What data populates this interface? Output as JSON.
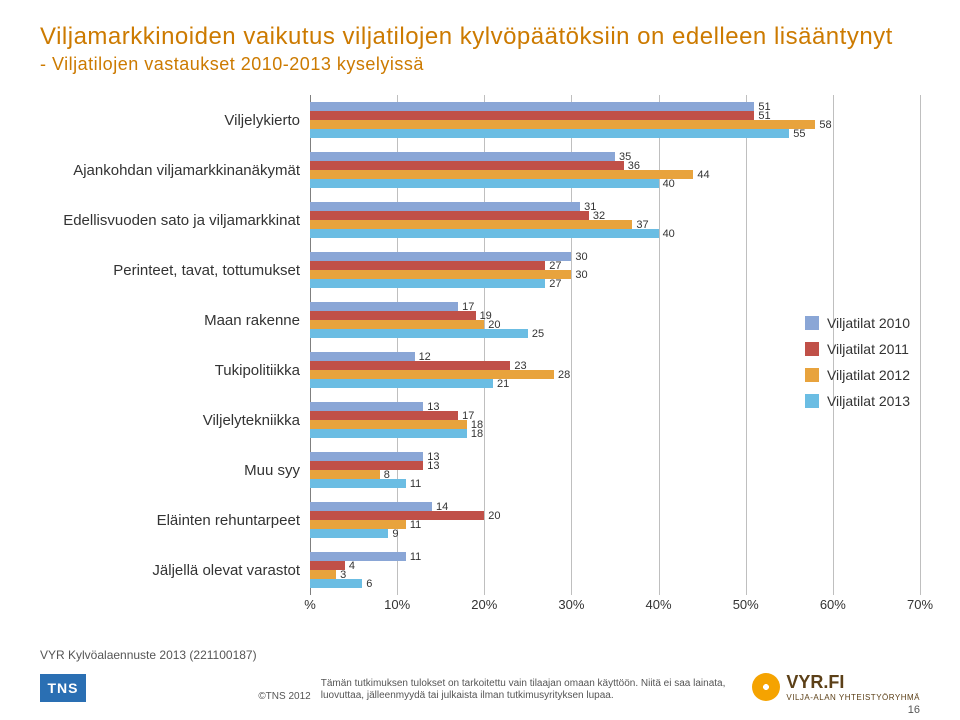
{
  "title": "Viljamarkkinoiden vaikutus viljatilojen kylvöpäätöksiin on edelleen lisääntynyt",
  "subtitle": "-  Viljatilojen vastaukset 2010-2013 kyselyissä",
  "chart": {
    "type": "bar-horizontal-grouped",
    "x_max": 70,
    "x_tick_step": 10,
    "x_ticks": [
      "%",
      "10%",
      "20%",
      "30%",
      "40%",
      "50%",
      "60%",
      "70%"
    ],
    "grid_color": "#bfbfbf",
    "axis_color": "#7f7f7f",
    "background": "#ffffff",
    "label_fontsize": 11,
    "cat_fontsize": 15,
    "series": [
      {
        "name": "Viljatilat 2010",
        "color": "#8aa6d6"
      },
      {
        "name": "Viljatilat 2011",
        "color": "#c05048"
      },
      {
        "name": "Viljatilat 2012",
        "color": "#e8a33d"
      },
      {
        "name": "Viljatilat 2013",
        "color": "#6bbde3"
      }
    ],
    "categories": [
      {
        "label": "Viljelykierto",
        "values": [
          51,
          51,
          58,
          55
        ]
      },
      {
        "label": "Ajankohdan viljamarkkinanäkymät",
        "values": [
          35,
          36,
          44,
          40
        ]
      },
      {
        "label": "Edellisvuoden sato ja viljamarkkinat",
        "values": [
          31,
          32,
          37,
          40
        ]
      },
      {
        "label": "Perinteet, tavat, tottumukset",
        "values": [
          30,
          27,
          30,
          27
        ]
      },
      {
        "label": "Maan rakenne",
        "values": [
          17,
          19,
          20,
          25
        ]
      },
      {
        "label": "Tukipolitiikka",
        "values": [
          12,
          23,
          28,
          21
        ]
      },
      {
        "label": "Viljelytekniikka",
        "values": [
          13,
          17,
          18,
          18
        ]
      },
      {
        "label": "Muu syy",
        "values": [
          13,
          13,
          8,
          11
        ]
      },
      {
        "label": "Eläinten rehuntarpeet",
        "values": [
          14,
          20,
          11,
          9
        ]
      },
      {
        "label": "Jäljellä olevat varastot",
        "values": [
          11,
          4,
          3,
          6
        ]
      }
    ]
  },
  "legend_title": "",
  "footer": {
    "survey": "VYR Kylvöalaennuste 2013 (221100187)",
    "tns": "TNS",
    "copyright": "©TNS 2012",
    "disclaimer": "Tämän tutkimuksen tulokset on tarkoitettu vain tilaajan omaan käyttöön. Niitä ei saa lainata, luovuttaa, jälleenmyydä tai julkaista ilman tutkimusyrityksen lupaa.",
    "vyr_text": "VYR.FI",
    "vyr_sub": "VILJA-ALAN YHTEISTYÖRYHMÄ",
    "page": "16"
  }
}
